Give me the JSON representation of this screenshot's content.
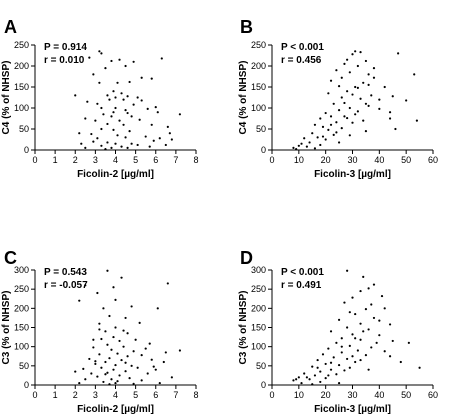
{
  "chart_data": [
    {
      "type": "scatter",
      "panel": "A",
      "xlabel": "Ficolin-2 [µg/ml]",
      "ylabel": "C4 (% of NHSP)",
      "xlim": [
        0,
        8
      ],
      "ylim": [
        0,
        250
      ],
      "xticks": [
        0,
        1,
        2,
        3,
        4,
        5,
        6,
        7,
        8
      ],
      "yticks": [
        0,
        50,
        100,
        150,
        200,
        250
      ],
      "stats": [
        "P = 0.914",
        "r = 0.010"
      ],
      "points": [
        [
          3.2,
          235
        ],
        [
          3.3,
          230
        ],
        [
          2.7,
          220
        ],
        [
          4.2,
          215
        ],
        [
          3.8,
          212
        ],
        [
          4.9,
          210
        ],
        [
          6.3,
          218
        ],
        [
          4.5,
          200
        ],
        [
          3.5,
          195
        ],
        [
          2.9,
          180
        ],
        [
          5.3,
          172
        ],
        [
          5.8,
          170
        ],
        [
          3.2,
          160
        ],
        [
          4.1,
          160
        ],
        [
          4.7,
          162
        ],
        [
          3.9,
          140
        ],
        [
          4.3,
          135
        ],
        [
          3.6,
          130
        ],
        [
          4.6,
          128
        ],
        [
          3.7,
          120
        ],
        [
          4.4,
          120
        ],
        [
          5.1,
          125
        ],
        [
          2.6,
          115
        ],
        [
          3.1,
          110
        ],
        [
          4.9,
          108
        ],
        [
          3.3,
          100
        ],
        [
          4.0,
          100
        ],
        [
          4.5,
          95
        ],
        [
          5.6,
          98
        ],
        [
          6.1,
          90
        ],
        [
          7.2,
          85
        ],
        [
          3.4,
          85
        ],
        [
          3.8,
          80
        ],
        [
          4.8,
          80
        ],
        [
          2.5,
          75
        ],
        [
          3.0,
          70
        ],
        [
          4.2,
          70
        ],
        [
          5.2,
          72
        ],
        [
          3.6,
          62
        ],
        [
          4.4,
          60
        ],
        [
          5.8,
          60
        ],
        [
          6.6,
          55
        ],
        [
          3.3,
          50
        ],
        [
          3.9,
          48
        ],
        [
          4.7,
          45
        ],
        [
          2.2,
          40
        ],
        [
          2.8,
          38
        ],
        [
          4.1,
          35
        ],
        [
          4.5,
          30
        ],
        [
          5.5,
          32
        ],
        [
          6.2,
          28
        ],
        [
          6.8,
          25
        ],
        [
          2.9,
          20
        ],
        [
          3.6,
          18
        ],
        [
          4.0,
          15
        ],
        [
          4.8,
          15
        ],
        [
          5.1,
          12
        ],
        [
          3.3,
          10
        ],
        [
          4.3,
          8
        ],
        [
          5.7,
          8
        ],
        [
          6.5,
          12
        ],
        [
          2.5,
          5
        ],
        [
          3.8,
          5
        ],
        [
          4.6,
          5
        ],
        [
          3.5,
          2
        ],
        [
          2.0,
          130
        ],
        [
          4.0,
          125
        ],
        [
          5.3,
          118
        ],
        [
          3.9,
          90
        ],
        [
          4.6,
          88
        ],
        [
          6.0,
          102
        ],
        [
          6.7,
          40
        ],
        [
          3.1,
          28
        ],
        [
          5.9,
          22
        ],
        [
          2.3,
          15
        ]
      ]
    },
    {
      "type": "scatter",
      "panel": "B",
      "xlabel": "Ficolin-3 [µg/ml]",
      "ylabel": "C4 (% of NHSP)",
      "xlim": [
        0,
        60
      ],
      "ylim": [
        0,
        250
      ],
      "xticks": [
        0,
        10,
        20,
        30,
        40,
        50,
        60
      ],
      "yticks": [
        0,
        50,
        100,
        150,
        200,
        250
      ],
      "stats": [
        "P < 0.001",
        "r = 0.456"
      ],
      "points": [
        [
          31,
          235
        ],
        [
          33,
          233
        ],
        [
          30,
          228
        ],
        [
          47,
          230
        ],
        [
          28,
          215
        ],
        [
          35,
          212
        ],
        [
          27,
          205
        ],
        [
          32,
          200
        ],
        [
          24,
          190
        ],
        [
          29,
          185
        ],
        [
          36,
          180
        ],
        [
          53,
          180
        ],
        [
          26,
          172
        ],
        [
          22,
          165
        ],
        [
          38,
          172
        ],
        [
          34,
          160
        ],
        [
          25,
          152
        ],
        [
          31,
          150
        ],
        [
          42,
          150
        ],
        [
          28,
          140
        ],
        [
          21,
          135
        ],
        [
          30,
          132
        ],
        [
          37,
          130
        ],
        [
          45,
          128
        ],
        [
          26,
          125
        ],
        [
          33,
          122
        ],
        [
          40,
          120
        ],
        [
          27,
          112
        ],
        [
          23,
          110
        ],
        [
          36,
          105
        ],
        [
          29,
          100
        ],
        [
          25,
          95
        ],
        [
          32,
          92
        ],
        [
          20,
          88
        ],
        [
          44,
          90
        ],
        [
          22,
          80
        ],
        [
          28,
          76
        ],
        [
          18,
          75
        ],
        [
          34,
          70
        ],
        [
          24,
          66
        ],
        [
          30,
          65
        ],
        [
          16,
          60
        ],
        [
          19,
          55
        ],
        [
          26,
          52
        ],
        [
          21,
          48
        ],
        [
          35,
          45
        ],
        [
          15,
          40
        ],
        [
          23,
          36
        ],
        [
          29,
          35
        ],
        [
          17,
          30
        ],
        [
          12,
          28
        ],
        [
          20,
          25
        ],
        [
          14,
          18
        ],
        [
          25,
          18
        ],
        [
          18,
          12
        ],
        [
          10,
          10
        ],
        [
          13,
          8
        ],
        [
          8,
          5
        ],
        [
          16,
          4
        ],
        [
          9,
          2
        ],
        [
          54,
          70
        ],
        [
          50,
          118
        ],
        [
          40,
          98
        ],
        [
          46,
          50
        ],
        [
          36,
          155
        ],
        [
          38,
          195
        ],
        [
          32,
          148
        ],
        [
          27,
          80
        ],
        [
          24,
          42
        ],
        [
          22,
          60
        ],
        [
          31,
          85
        ],
        [
          19,
          32
        ],
        [
          11,
          15
        ],
        [
          35,
          110
        ],
        [
          44,
          75
        ]
      ]
    },
    {
      "type": "scatter",
      "panel": "C",
      "xlabel": "Ficolin-2 [µg/ml]",
      "ylabel": "C3 (% of NHSP)",
      "xlim": [
        0,
        8
      ],
      "ylim": [
        0,
        300
      ],
      "xticks": [
        0,
        1,
        2,
        3,
        4,
        5,
        6,
        7,
        8
      ],
      "yticks": [
        0,
        50,
        100,
        150,
        200,
        250,
        300
      ],
      "stats": [
        "P = 0.543",
        "r = -0.057"
      ],
      "points": [
        [
          3.6,
          298
        ],
        [
          4.3,
          280
        ],
        [
          2.5,
          260
        ],
        [
          3.9,
          255
        ],
        [
          6.6,
          265
        ],
        [
          3.1,
          240
        ],
        [
          4.0,
          222
        ],
        [
          2.2,
          220
        ],
        [
          4.8,
          205
        ],
        [
          3.4,
          200
        ],
        [
          6.1,
          200
        ],
        [
          3.7,
          180
        ],
        [
          4.5,
          175
        ],
        [
          3.2,
          160
        ],
        [
          5.2,
          162
        ],
        [
          4.0,
          150
        ],
        [
          3.5,
          140
        ],
        [
          4.6,
          135
        ],
        [
          3.9,
          125
        ],
        [
          3.3,
          120
        ],
        [
          4.2,
          115
        ],
        [
          5.0,
          118
        ],
        [
          3.6,
          105
        ],
        [
          4.4,
          100
        ],
        [
          2.9,
          98
        ],
        [
          5.5,
          95
        ],
        [
          3.8,
          92
        ],
        [
          7.2,
          90
        ],
        [
          4.9,
          88
        ],
        [
          4.1,
          82
        ],
        [
          3.2,
          80
        ],
        [
          5.3,
          78
        ],
        [
          4.6,
          75
        ],
        [
          3.7,
          70
        ],
        [
          2.7,
          68
        ],
        [
          4.3,
          65
        ],
        [
          5.8,
          66
        ],
        [
          3.5,
          60
        ],
        [
          6.4,
          60
        ],
        [
          3.0,
          55
        ],
        [
          4.0,
          52
        ],
        [
          4.8,
          50
        ],
        [
          3.3,
          45
        ],
        [
          5.1,
          45
        ],
        [
          2.4,
          42
        ],
        [
          3.9,
          40
        ],
        [
          6.0,
          40
        ],
        [
          4.5,
          36
        ],
        [
          3.6,
          32
        ],
        [
          2.8,
          30
        ],
        [
          5.6,
          30
        ],
        [
          4.2,
          25
        ],
        [
          3.1,
          22
        ],
        [
          6.8,
          20
        ],
        [
          4.7,
          18
        ],
        [
          2.5,
          15
        ],
        [
          3.8,
          15
        ],
        [
          5.3,
          12
        ],
        [
          3.4,
          8
        ],
        [
          4.0,
          5
        ],
        [
          2.2,
          5
        ],
        [
          6.2,
          5
        ],
        [
          4.9,
          3
        ],
        [
          3.7,
          2
        ],
        [
          2.9,
          118
        ],
        [
          4.4,
          142
        ],
        [
          5.7,
          108
        ],
        [
          6.5,
          85
        ],
        [
          3.0,
          62
        ],
        [
          4.5,
          58
        ],
        [
          3.5,
          28
        ],
        [
          2.0,
          35
        ],
        [
          5.9,
          48
        ],
        [
          4.1,
          10
        ],
        [
          3.2,
          145
        ]
      ]
    },
    {
      "type": "scatter",
      "panel": "D",
      "xlabel": "Ficolin-3 [µg/ml]",
      "ylabel": "C3 (% of NHSP)",
      "xlim": [
        0,
        60
      ],
      "ylim": [
        0,
        300
      ],
      "xticks": [
        0,
        10,
        20,
        30,
        40,
        50,
        60
      ],
      "yticks": [
        0,
        50,
        100,
        150,
        200,
        250,
        300
      ],
      "stats": [
        "P < 0.001",
        "r = 0.491"
      ],
      "points": [
        [
          28,
          298
        ],
        [
          34,
          282
        ],
        [
          38,
          262
        ],
        [
          36,
          252
        ],
        [
          33,
          245
        ],
        [
          41,
          232
        ],
        [
          30,
          228
        ],
        [
          27,
          215
        ],
        [
          42,
          200
        ],
        [
          35,
          198
        ],
        [
          31,
          185
        ],
        [
          38,
          175
        ],
        [
          25,
          170
        ],
        [
          33,
          160
        ],
        [
          44,
          158
        ],
        [
          28,
          150
        ],
        [
          36,
          145
        ],
        [
          22,
          140
        ],
        [
          30,
          132
        ],
        [
          40,
          130
        ],
        [
          26,
          122
        ],
        [
          33,
          118
        ],
        [
          45,
          115
        ],
        [
          24,
          110
        ],
        [
          29,
          102
        ],
        [
          37,
          98
        ],
        [
          21,
          95
        ],
        [
          32,
          90
        ],
        [
          26,
          85
        ],
        [
          19,
          80
        ],
        [
          35,
          78
        ],
        [
          23,
          72
        ],
        [
          28,
          68
        ],
        [
          17,
          65
        ],
        [
          31,
          60
        ],
        [
          20,
          55
        ],
        [
          25,
          52
        ],
        [
          15,
          48
        ],
        [
          29,
          45
        ],
        [
          22,
          40
        ],
        [
          36,
          40
        ],
        [
          18,
          35
        ],
        [
          12,
          30
        ],
        [
          24,
          28
        ],
        [
          16,
          25
        ],
        [
          10,
          20
        ],
        [
          20,
          18
        ],
        [
          14,
          15
        ],
        [
          8,
          12
        ],
        [
          18,
          8
        ],
        [
          11,
          5
        ],
        [
          25,
          5
        ],
        [
          15,
          2
        ],
        [
          55,
          45
        ],
        [
          48,
          60
        ],
        [
          51,
          110
        ],
        [
          44,
          75
        ],
        [
          39,
          110
        ],
        [
          33,
          65
        ],
        [
          27,
          38
        ],
        [
          21,
          25
        ],
        [
          13,
          20
        ],
        [
          37,
          210
        ],
        [
          29,
          190
        ],
        [
          34,
          140
        ],
        [
          26,
          100
        ],
        [
          30,
          75
        ],
        [
          22,
          58
        ],
        [
          42,
          88
        ],
        [
          17,
          45
        ],
        [
          9,
          15
        ],
        [
          40,
          168
        ],
        [
          31,
          122
        ]
      ]
    }
  ]
}
